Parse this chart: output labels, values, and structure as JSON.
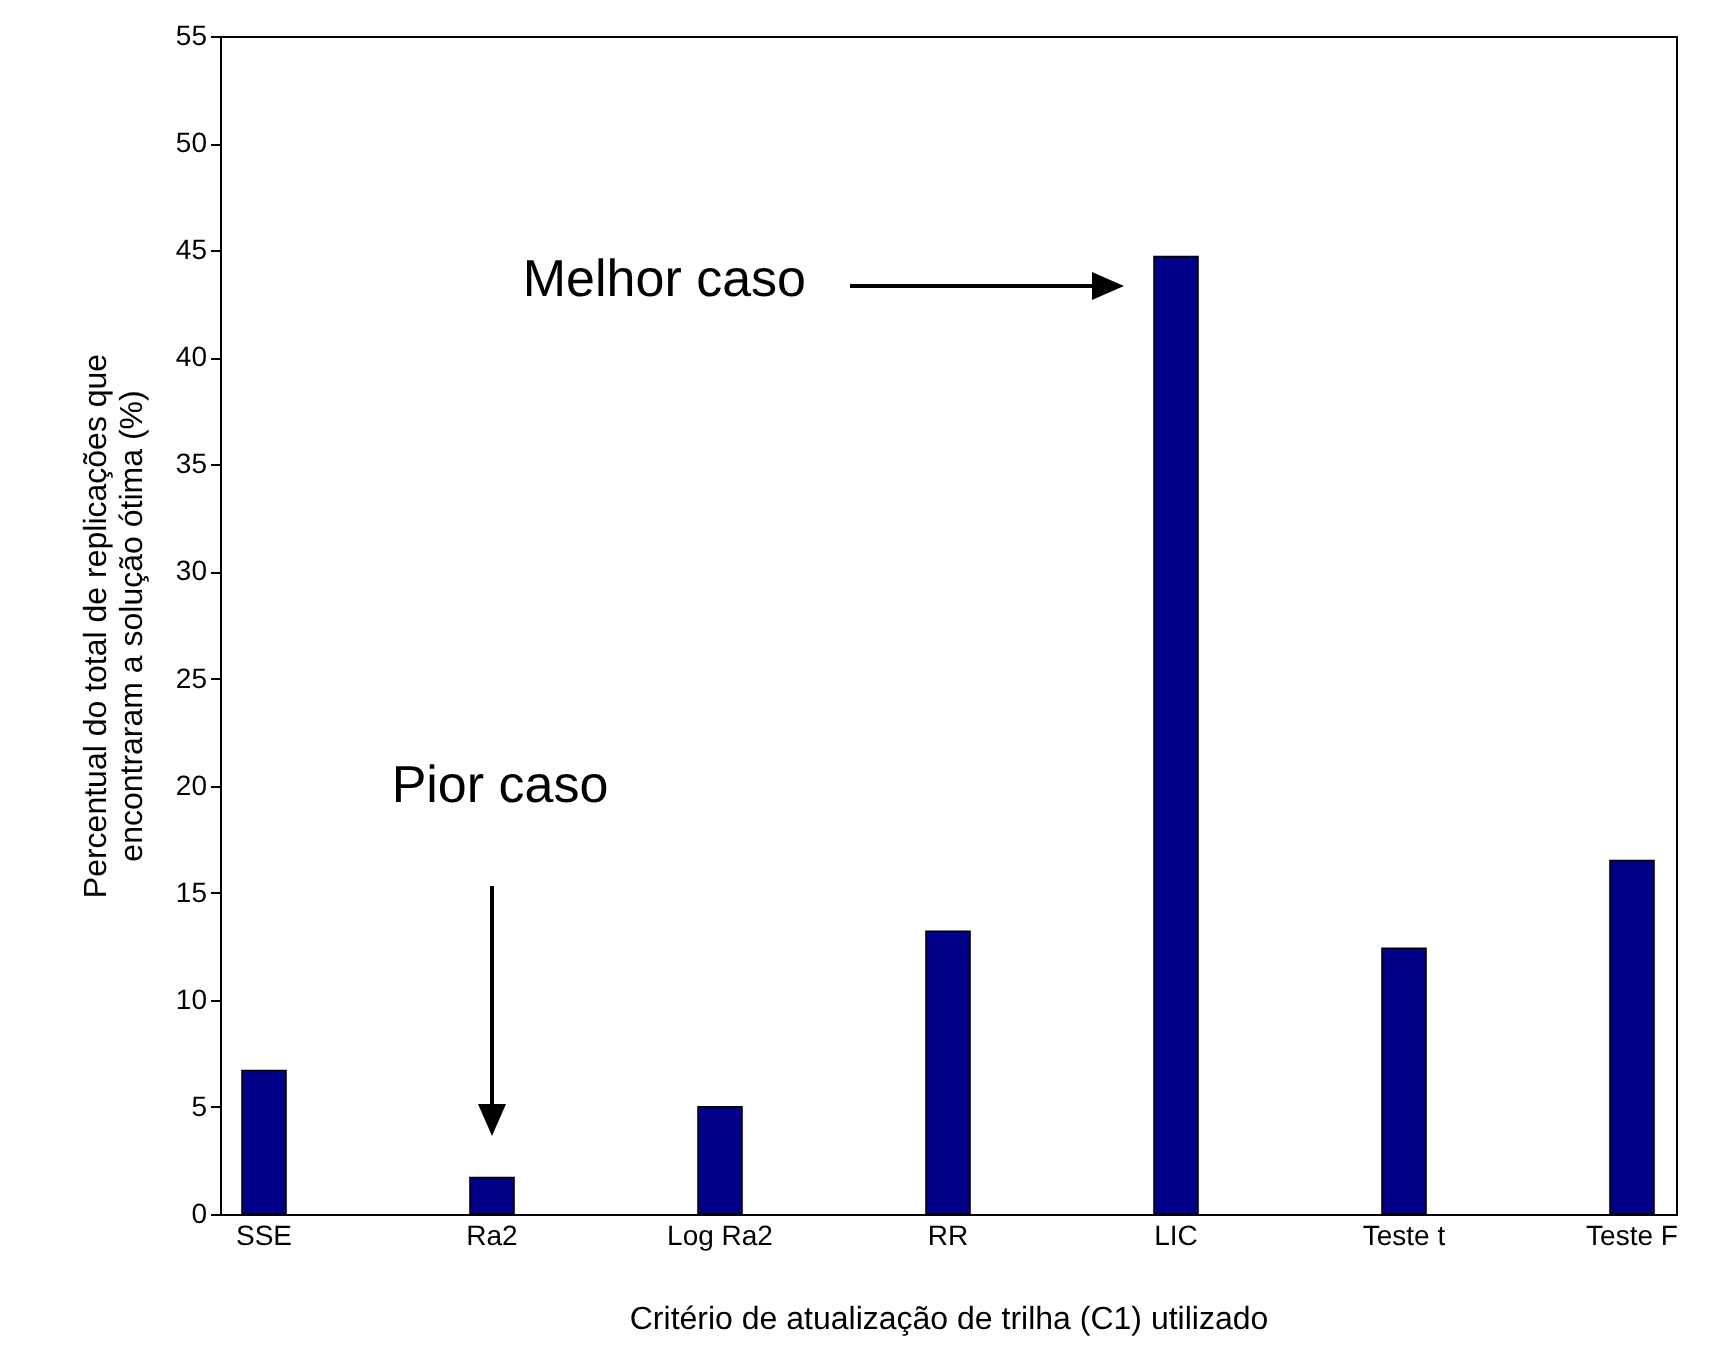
{
  "chart_data": {
    "type": "bar",
    "xlabel": "Critério de atualização de trilha (C1) utilizado",
    "ylabel": "Percentual do total de replicações que encontraram a solução ótima (%)",
    "categories": [
      "SSE",
      "Ra2",
      "Log Ra2",
      "RR",
      "LIC",
      "Teste t",
      "Teste F"
    ],
    "values": [
      6.7,
      1.7,
      5.0,
      13.2,
      44.7,
      12.4,
      16.5
    ],
    "color": "#000088",
    "ylim": [
      0,
      55
    ],
    "yticks": [
      0,
      5,
      10,
      15,
      20,
      25,
      30,
      35,
      40,
      45,
      50,
      55
    ],
    "grid": false,
    "annotations": [
      "Pior caso",
      "Melhor caso"
    ]
  }
}
